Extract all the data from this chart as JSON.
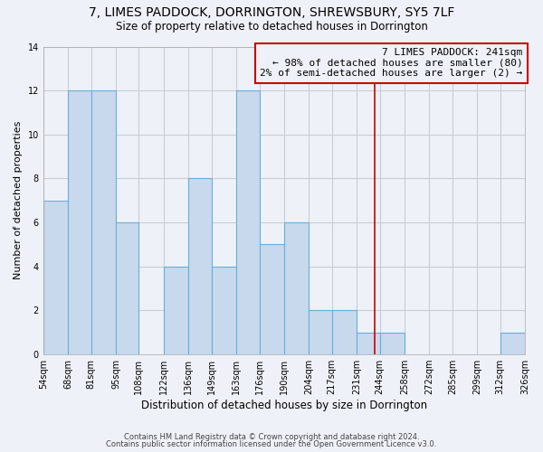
{
  "title": "7, LIMES PADDOCK, DORRINGTON, SHREWSBURY, SY5 7LF",
  "subtitle": "Size of property relative to detached houses in Dorrington",
  "xlabel": "Distribution of detached houses by size in Dorrington",
  "ylabel": "Number of detached properties",
  "bin_edges": [
    54,
    68,
    81,
    95,
    108,
    122,
    136,
    149,
    163,
    176,
    190,
    204,
    217,
    231,
    244,
    258,
    272,
    285,
    299,
    312,
    326
  ],
  "bar_heights": [
    7,
    12,
    12,
    6,
    0,
    4,
    8,
    4,
    12,
    5,
    6,
    2,
    2,
    1,
    1,
    0,
    0,
    0,
    0,
    1
  ],
  "bar_color": "#c8d9ee",
  "bar_edge_color": "#6baed6",
  "grid_color": "#c8cdd4",
  "vline_x": 241,
  "vline_color": "#cc0000",
  "annotation_text": "7 LIMES PADDOCK: 241sqm\n← 98% of detached houses are smaller (80)\n2% of semi-detached houses are larger (2) →",
  "annotation_box_edge": "#cc0000",
  "ylim": [
    0,
    14
  ],
  "yticks": [
    0,
    2,
    4,
    6,
    8,
    10,
    12,
    14
  ],
  "footnote1": "Contains HM Land Registry data © Crown copyright and database right 2024.",
  "footnote2": "Contains public sector information licensed under the Open Government Licence v3.0.",
  "bg_color": "#eef2f8",
  "title_fontsize": 10,
  "subtitle_fontsize": 8.5,
  "xlabel_fontsize": 8.5,
  "ylabel_fontsize": 8,
  "tick_fontsize": 7,
  "annotation_fontsize": 8,
  "footnote_fontsize": 6
}
